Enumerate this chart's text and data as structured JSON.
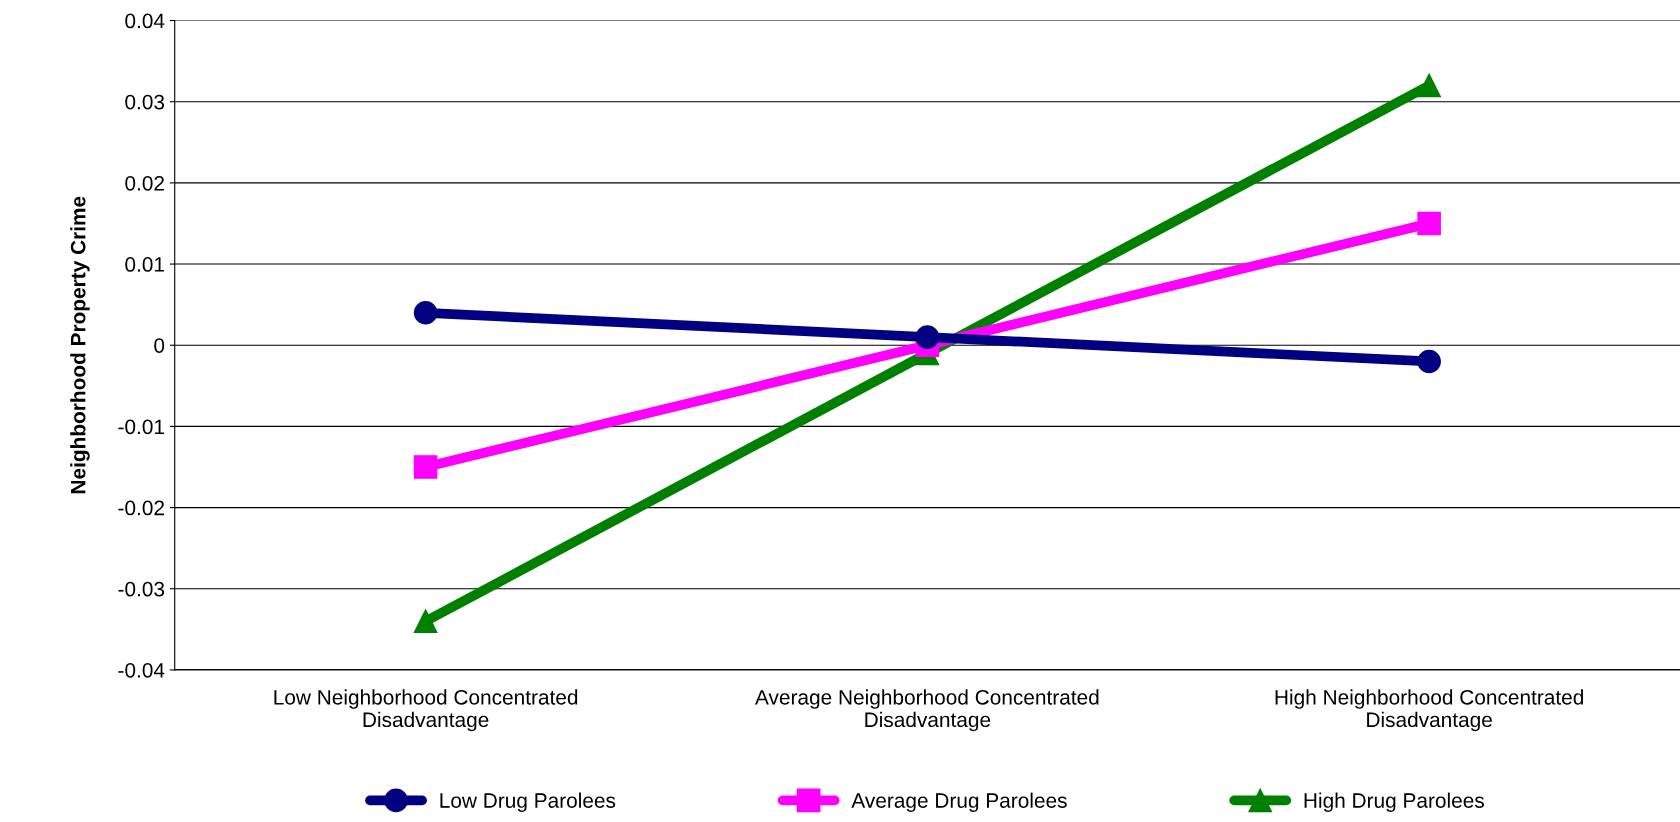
{
  "chart_data": {
    "type": "line",
    "ylabel": "Neighborhood Property Crime",
    "categories": [
      "Low Neighborhood Concentrated\nDisadvantage",
      "Average Neighborhood Concentrated\nDisadvantage",
      "High Neighborhood Concentrated\nDisadvantage"
    ],
    "series": [
      {
        "name": "Low Drug Parolees",
        "color": "#000080",
        "marker": "circle",
        "values": [
          0.004,
          0.001,
          -0.002
        ]
      },
      {
        "name": "Average Drug Parolees",
        "color": "#ff00ff",
        "marker": "square",
        "values": [
          -0.015,
          0.0,
          0.015
        ]
      },
      {
        "name": "High Drug Parolees",
        "color": "#008000",
        "marker": "triangle",
        "values": [
          -0.034,
          -0.001,
          0.032
        ]
      }
    ],
    "ylim": [
      -0.04,
      0.04
    ],
    "yticks": [
      -0.04,
      -0.03,
      -0.02,
      -0.01,
      0,
      0.01,
      0.02,
      0.03,
      0.04
    ],
    "grid": "y",
    "legend": "bottom",
    "line_style": "solid"
  }
}
